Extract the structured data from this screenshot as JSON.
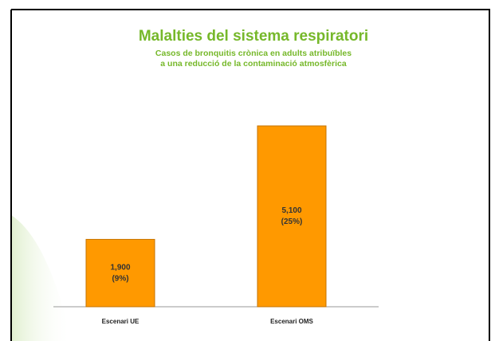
{
  "chart_data": {
    "type": "bar",
    "title": "Malalties del sistema respiratori",
    "subtitle": [
      "Casos de bronquitis crònica en adults atribuïbles",
      "a una reducció de la contaminació atmosfèrica"
    ],
    "categories": [
      "Escenari UE",
      "Escenari OMS"
    ],
    "values": [
      1900,
      5100
    ],
    "value_labels": [
      "1,900",
      "5,100"
    ],
    "percent_labels": [
      "(9%)",
      "(25%)"
    ],
    "color": "#ff9900"
  }
}
